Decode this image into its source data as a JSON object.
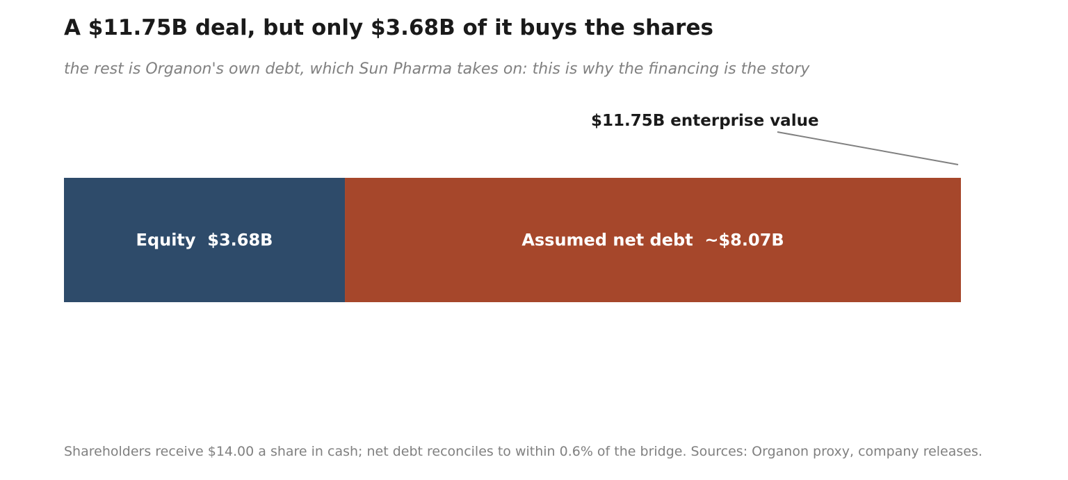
{
  "header": {
    "title": "A $11.75B deal, but only $3.68B of it buys the shares",
    "subtitle": "the rest is Organon's own debt, which Sun Pharma takes on: this is why the financing is the story"
  },
  "chart_data": {
    "type": "bar",
    "orientation": "horizontal-stacked",
    "categories": [
      "Equity",
      "Assumed net debt"
    ],
    "values": [
      3.68,
      8.07
    ],
    "labels": [
      "Equity  $3.68B",
      "Assumed net debt  ~$8.07B"
    ],
    "colors": [
      "#2e4b6a",
      "#a6472b"
    ],
    "total": 11.75,
    "xlim": [
      0,
      11.75
    ],
    "annotation": "$11.75B enterprise value",
    "grid": false,
    "legend": "none"
  },
  "footer": {
    "note": "Shareholders receive $14.00 a share in cash; net debt reconciles to within 0.6% of the bridge.  Sources: Organon proxy, company releases."
  }
}
